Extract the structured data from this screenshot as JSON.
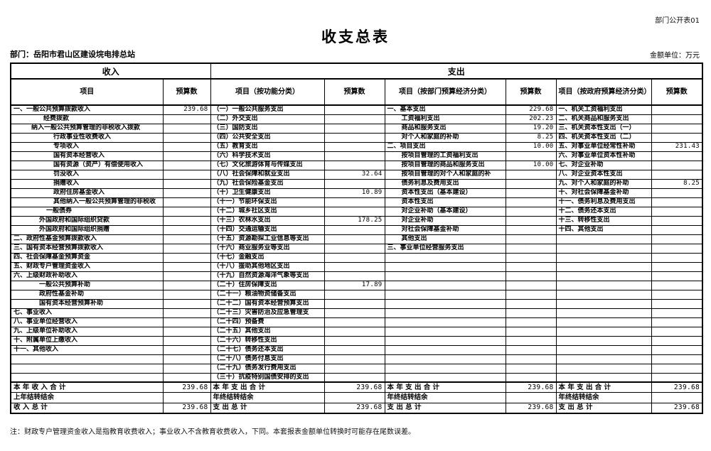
{
  "header": {
    "doc_code": "部门公开表01",
    "title": "收支总表",
    "department": "部门：岳阳市君山区建设垸电排总站",
    "unit": "金额单位：万元"
  },
  "table": {
    "income_group": "收入",
    "expense_group": "支出",
    "columns": [
      "项目",
      "预算数",
      "项目（按功能分类）",
      "预算数",
      "项目（按部门预算经济分类）",
      "预算数",
      "项目（按政府预算经济分类）",
      "预算数"
    ]
  },
  "rows": {
    "income": [
      {
        "label": "一、一般公共预算拨款收入",
        "indent": 0,
        "value": "239.68"
      },
      {
        "label": "经费拨款",
        "indent": 42,
        "value": ""
      },
      {
        "label": "纳入一般公共预算管理的非税收入拨款",
        "indent": 25,
        "value": ""
      },
      {
        "label": "行政事业性收费收入",
        "indent": 56,
        "value": ""
      },
      {
        "label": "专项收入",
        "indent": 56,
        "value": ""
      },
      {
        "label": "国有资本经营收入",
        "indent": 56,
        "value": ""
      },
      {
        "label": "国有资源（资产）有偿使用收入",
        "indent": 56,
        "value": ""
      },
      {
        "label": "罚没收入",
        "indent": 56,
        "value": ""
      },
      {
        "label": "捐赠收入",
        "indent": 56,
        "value": ""
      },
      {
        "label": "政府住房基金收入",
        "indent": 56,
        "value": ""
      },
      {
        "label": "其他纳入一般公共预算管理的非税收",
        "indent": 56,
        "value": ""
      },
      {
        "label": "一般债券",
        "indent": 46,
        "value": ""
      },
      {
        "label": "外国政府和国际组织贷款",
        "indent": 36,
        "value": ""
      },
      {
        "label": "外国政府和国际组织捐赠",
        "indent": 36,
        "value": ""
      },
      {
        "label": "二、政府性基金预算拨款收入",
        "indent": 0,
        "value": ""
      },
      {
        "label": "三、国有资本经营预算拨款收入",
        "indent": 0,
        "value": ""
      },
      {
        "label": "四、社会保障基金预算资金",
        "indent": 0,
        "value": ""
      },
      {
        "label": "五、财政专户管理资金收入",
        "indent": 0,
        "value": ""
      },
      {
        "label": "六、上级财政补助收入",
        "indent": 0,
        "value": ""
      },
      {
        "label": "一般公共预算补助",
        "indent": 36,
        "value": ""
      },
      {
        "label": "政府性基金补助",
        "indent": 36,
        "value": ""
      },
      {
        "label": "国有资本经营预算补助",
        "indent": 36,
        "value": ""
      },
      {
        "label": "七、事业收入",
        "indent": 0,
        "value": ""
      },
      {
        "label": "八、事业单位经营收入",
        "indent": 0,
        "value": ""
      },
      {
        "label": "九、上级单位补助收入",
        "indent": 0,
        "value": ""
      },
      {
        "label": "十、附属单位上缴收入",
        "indent": 0,
        "value": ""
      },
      {
        "label": "十一、其他收入",
        "indent": 0,
        "value": ""
      },
      {
        "label": "",
        "indent": 0,
        "value": ""
      },
      {
        "label": "",
        "indent": 0,
        "value": ""
      },
      {
        "label": "",
        "indent": 0,
        "value": ""
      }
    ],
    "func": [
      {
        "label": "（一）一般公共服务支出",
        "indent": 0,
        "value": ""
      },
      {
        "label": "（二）外交支出",
        "indent": 0,
        "value": ""
      },
      {
        "label": "（三）国防支出",
        "indent": 0,
        "value": ""
      },
      {
        "label": "（四）公共安全支出",
        "indent": 0,
        "value": ""
      },
      {
        "label": "（五）教育支出",
        "indent": 0,
        "value": ""
      },
      {
        "label": "（六）科学技术支出",
        "indent": 0,
        "value": ""
      },
      {
        "label": "（七）文化旅游体育与传媒支出",
        "indent": 0,
        "value": ""
      },
      {
        "label": "（八）社会保障和就业支出",
        "indent": 0,
        "value": "32.64"
      },
      {
        "label": "（九）社会保险基金支出",
        "indent": 0,
        "value": ""
      },
      {
        "label": "（十）卫生健康支出",
        "indent": 0,
        "value": "10.89"
      },
      {
        "label": "（十一）节能环保支出",
        "indent": 0,
        "value": ""
      },
      {
        "label": "（十二）城乡社区支出",
        "indent": 0,
        "value": ""
      },
      {
        "label": "（十三）农林水支出",
        "indent": 0,
        "value": "178.25"
      },
      {
        "label": "（十四）交通运输支出",
        "indent": 0,
        "value": ""
      },
      {
        "label": "（十五）资源勘探工业信息等支出",
        "indent": 0,
        "value": ""
      },
      {
        "label": "（十六）商业服务业等支出",
        "indent": 0,
        "value": ""
      },
      {
        "label": "（十七）金融支出",
        "indent": 0,
        "value": ""
      },
      {
        "label": "（十八）援助其他地区支出",
        "indent": 0,
        "value": ""
      },
      {
        "label": "（十九）自然资源海洋气象等支出",
        "indent": 0,
        "value": ""
      },
      {
        "label": "（二十）住房保障支出",
        "indent": 0,
        "value": "17.89"
      },
      {
        "label": "（二十一）粮油物资储备支出",
        "indent": 0,
        "value": ""
      },
      {
        "label": "（二十二）国有资本经营预算支出",
        "indent": 0,
        "value": ""
      },
      {
        "label": "（二十三）灾害防治及应急管理支",
        "indent": 0,
        "value": ""
      },
      {
        "label": "（二十四）预备费",
        "indent": 0,
        "value": ""
      },
      {
        "label": "（二十五）其他支出",
        "indent": 0,
        "value": ""
      },
      {
        "label": "（二十六）转移性支出",
        "indent": 0,
        "value": ""
      },
      {
        "label": "（二十七）债务还本支出",
        "indent": 0,
        "value": ""
      },
      {
        "label": "（二十八）债务付息支出",
        "indent": 0,
        "value": ""
      },
      {
        "label": "（二十九）债务发行费用支出",
        "indent": 0,
        "value": ""
      },
      {
        "label": "（三十）抗疫特别国债安排的支出",
        "indent": 0,
        "value": ""
      }
    ],
    "dept": [
      {
        "label": "一、基本支出",
        "indent": 0,
        "value": "229.68"
      },
      {
        "label": "工资福利支出",
        "indent": 20,
        "value": "202.23"
      },
      {
        "label": "商品和服务支出",
        "indent": 20,
        "value": "19.20"
      },
      {
        "label": "对个人和家庭的补助",
        "indent": 20,
        "value": "8.25"
      },
      {
        "label": "二、项目支出",
        "indent": 0,
        "value": "10.00"
      },
      {
        "label": "按项目管理的工资福利支出",
        "indent": 20,
        "value": ""
      },
      {
        "label": "按项目管理的商品和服务支出",
        "indent": 20,
        "value": "10.00"
      },
      {
        "label": "按项目管理的对个人和家庭的补",
        "indent": 20,
        "value": ""
      },
      {
        "label": "债务利息及费用支出",
        "indent": 20,
        "value": ""
      },
      {
        "label": "资本性支出（基本建设）",
        "indent": 20,
        "value": ""
      },
      {
        "label": "资本性支出",
        "indent": 20,
        "value": ""
      },
      {
        "label": "对企业补助（基本建设）",
        "indent": 20,
        "value": ""
      },
      {
        "label": "对企业补助",
        "indent": 20,
        "value": ""
      },
      {
        "label": "对社会保障基金补助",
        "indent": 20,
        "value": ""
      },
      {
        "label": "其他支出",
        "indent": 20,
        "value": ""
      },
      {
        "label": "三、事业单位经营服务支出",
        "indent": 0,
        "value": ""
      },
      {
        "label": "",
        "indent": 0,
        "value": ""
      },
      {
        "label": "",
        "indent": 0,
        "value": ""
      },
      {
        "label": "",
        "indent": 0,
        "value": ""
      },
      {
        "label": "",
        "indent": 0,
        "value": ""
      },
      {
        "label": "",
        "indent": 0,
        "value": ""
      },
      {
        "label": "",
        "indent": 0,
        "value": ""
      },
      {
        "label": "",
        "indent": 0,
        "value": ""
      },
      {
        "label": "",
        "indent": 0,
        "value": ""
      },
      {
        "label": "",
        "indent": 0,
        "value": ""
      },
      {
        "label": "",
        "indent": 0,
        "value": ""
      },
      {
        "label": "",
        "indent": 0,
        "value": ""
      },
      {
        "label": "",
        "indent": 0,
        "value": ""
      },
      {
        "label": "",
        "indent": 0,
        "value": ""
      },
      {
        "label": "",
        "indent": 0,
        "value": ""
      }
    ],
    "gov": [
      {
        "label": "一、机关工资福利支出",
        "indent": 0,
        "value": ""
      },
      {
        "label": "二、机关商品和服务支出",
        "indent": 0,
        "value": ""
      },
      {
        "label": "三、机关资本性支出（一）",
        "indent": 0,
        "value": ""
      },
      {
        "label": "四、机关资本性支出（二）",
        "indent": 0,
        "value": ""
      },
      {
        "label": "五、对事业单位经常性补助",
        "indent": 0,
        "value": "231.43"
      },
      {
        "label": "六、对事业单位资本性补助",
        "indent": 0,
        "value": ""
      },
      {
        "label": "七、对企业补助",
        "indent": 0,
        "value": ""
      },
      {
        "label": "八、对企业资本性支出",
        "indent": 0,
        "value": ""
      },
      {
        "label": "九、对个人和家庭的补助",
        "indent": 0,
        "value": "8.25"
      },
      {
        "label": "十、对社会保障基金补助",
        "indent": 0,
        "value": ""
      },
      {
        "label": "十一、债务利息及费用支出",
        "indent": 0,
        "value": ""
      },
      {
        "label": "十二、债务还本支出",
        "indent": 0,
        "value": ""
      },
      {
        "label": "十三、转移性支出",
        "indent": 0,
        "value": ""
      },
      {
        "label": "十四、其他支出",
        "indent": 0,
        "value": ""
      },
      {
        "label": "",
        "indent": 0,
        "value": ""
      },
      {
        "label": "",
        "indent": 0,
        "value": ""
      },
      {
        "label": "",
        "indent": 0,
        "value": ""
      },
      {
        "label": "",
        "indent": 0,
        "value": ""
      },
      {
        "label": "",
        "indent": 0,
        "value": ""
      },
      {
        "label": "",
        "indent": 0,
        "value": ""
      },
      {
        "label": "",
        "indent": 0,
        "value": ""
      },
      {
        "label": "",
        "indent": 0,
        "value": ""
      },
      {
        "label": "",
        "indent": 0,
        "value": ""
      },
      {
        "label": "",
        "indent": 0,
        "value": ""
      },
      {
        "label": "",
        "indent": 0,
        "value": ""
      },
      {
        "label": "",
        "indent": 0,
        "value": ""
      },
      {
        "label": "",
        "indent": 0,
        "value": ""
      },
      {
        "label": "",
        "indent": 0,
        "value": ""
      },
      {
        "label": "",
        "indent": 0,
        "value": ""
      },
      {
        "label": "",
        "indent": 0,
        "value": ""
      }
    ]
  },
  "totals": {
    "income": [
      {
        "label": "本 年 收 入 合 计",
        "value": "239.68"
      },
      {
        "label": "上年结转结余",
        "value": ""
      },
      {
        "label": "收 入 总 计",
        "value": "239.68"
      }
    ],
    "func": [
      {
        "label": "本 年 支 出 合 计",
        "value": "239.68"
      },
      {
        "label": "年终结转结余",
        "value": ""
      },
      {
        "label": "支 出 总 计",
        "value": "239.68"
      }
    ],
    "dept": [
      {
        "label": "本 年 支 出 合 计",
        "value": "239.68"
      },
      {
        "label": "年终结转结余",
        "value": ""
      },
      {
        "label": "支 出 总 计",
        "value": "239.68"
      }
    ],
    "gov": [
      {
        "label": "本 年 支 出 合 计",
        "value": "239.68"
      },
      {
        "label": "年终结转结余",
        "value": ""
      },
      {
        "label": "支 出 总 计",
        "value": "239.68"
      }
    ]
  },
  "note": "注：财政专户管理资金收入是指教育收费收入；事业收入不含教育收费收入，下同。本套报表金额单位转换时可能存在尾数误差。"
}
